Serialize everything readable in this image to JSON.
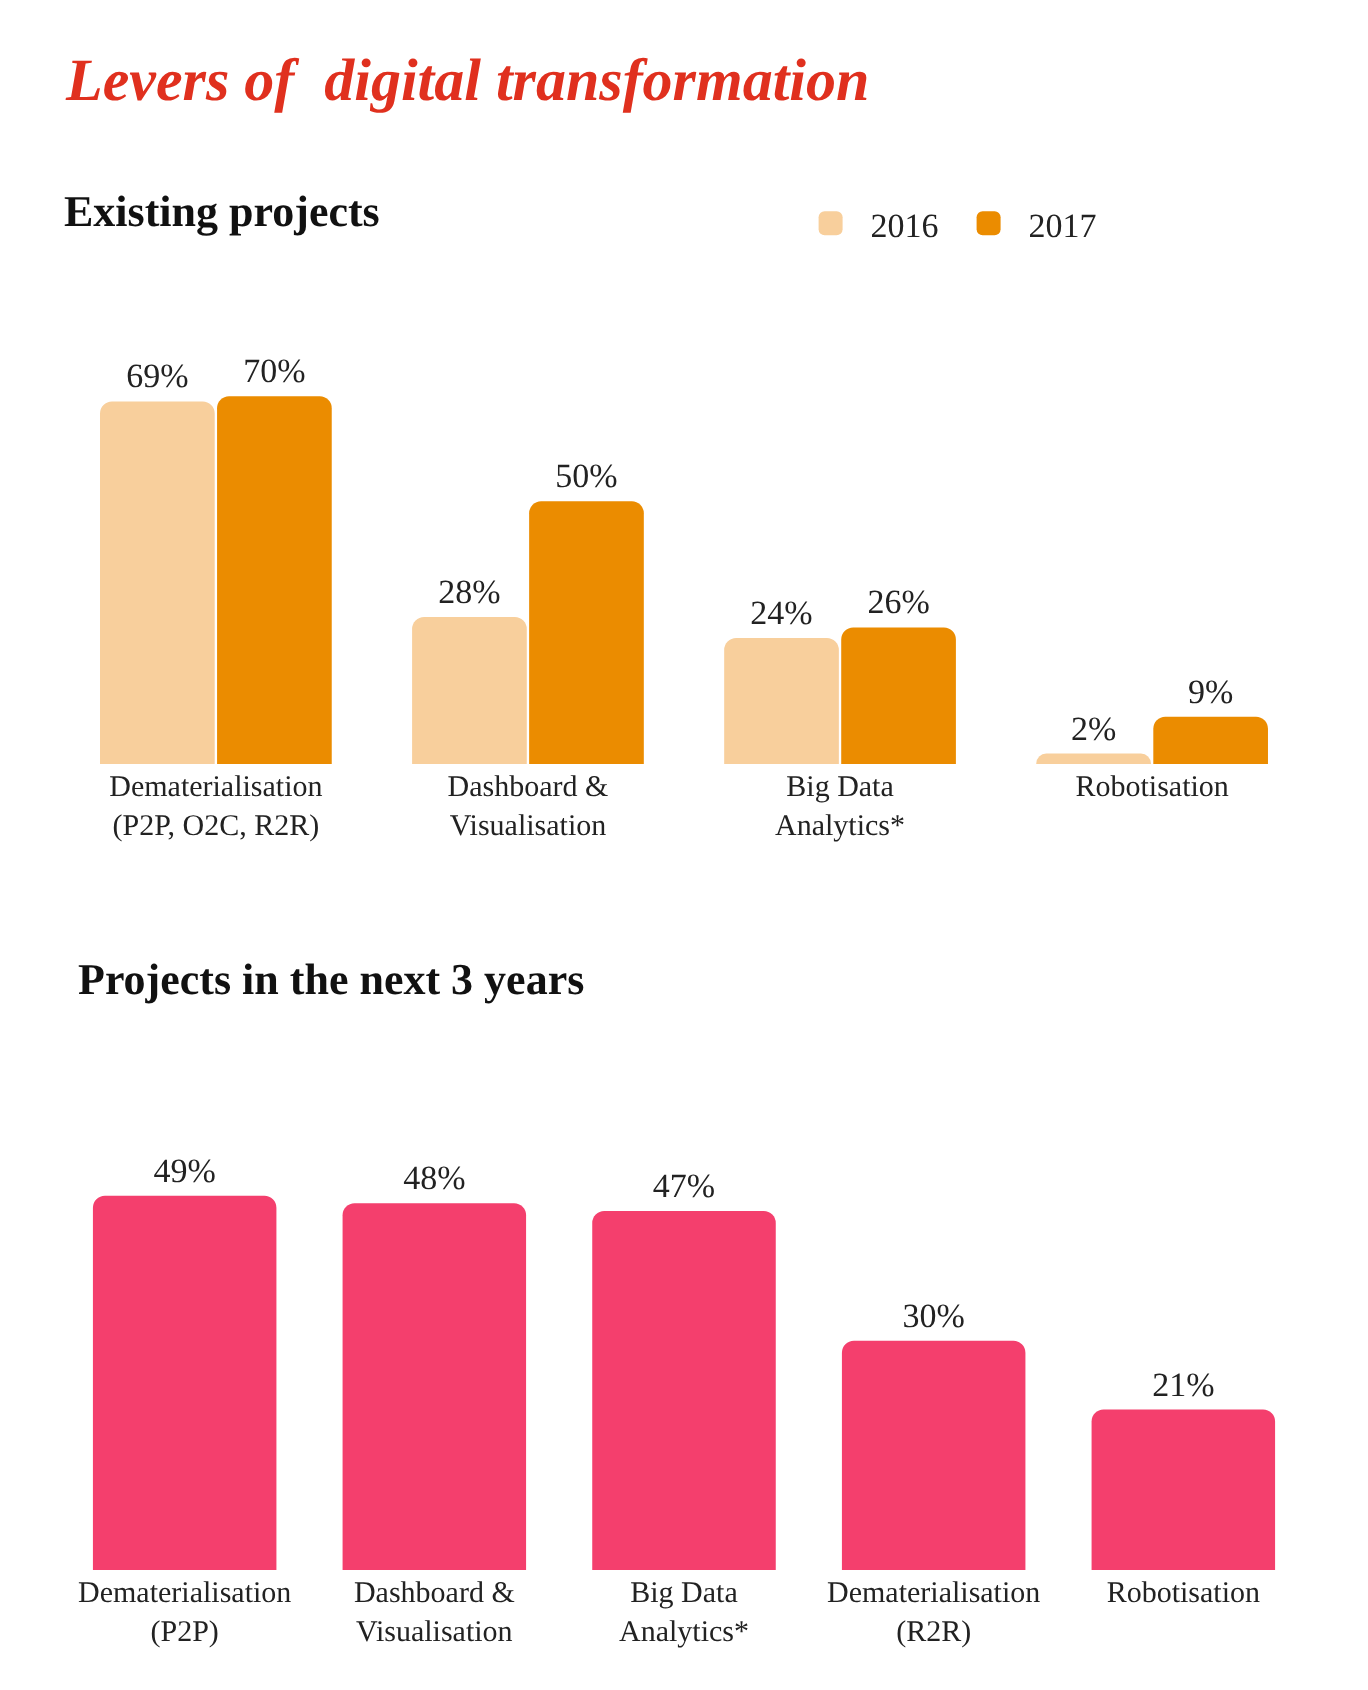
{
  "chart_data": [
    {
      "type": "bar",
      "title": "Levers of  digital transformation",
      "subtitle": "Existing projects",
      "categories": [
        "Dematerialisation\n(P2P, O2C, R2R)",
        "Dashboard &\nVisualisation",
        "Big Data\nAnalytics*",
        "Robotisation"
      ],
      "legend": "top right",
      "series": [
        {
          "name": "2016",
          "color": "#f8cf9c",
          "values": [
            69,
            28,
            24,
            2
          ],
          "value_labels": [
            "69%",
            "28%",
            "24%",
            "2%"
          ]
        },
        {
          "name": "2017",
          "color": "#eb8c00",
          "values": [
            70,
            50,
            26,
            9
          ],
          "value_labels": [
            "70%",
            "50%",
            "26%",
            "9%"
          ]
        }
      ]
    },
    {
      "type": "bar",
      "title": "Projects in the next 3 years",
      "categories": [
        "Dematerialisation\n(P2P)",
        "Dashboard &\nVisualisation",
        "Big Data\nAnalytics*",
        "Dematerialisation\n(R2R)",
        "Robotisation"
      ],
      "color": "#f43f6d",
      "values": [
        49,
        48,
        47,
        30,
        21
      ],
      "value_labels": [
        "49%",
        "48%",
        "47%",
        "30%",
        "21%"
      ]
    }
  ]
}
